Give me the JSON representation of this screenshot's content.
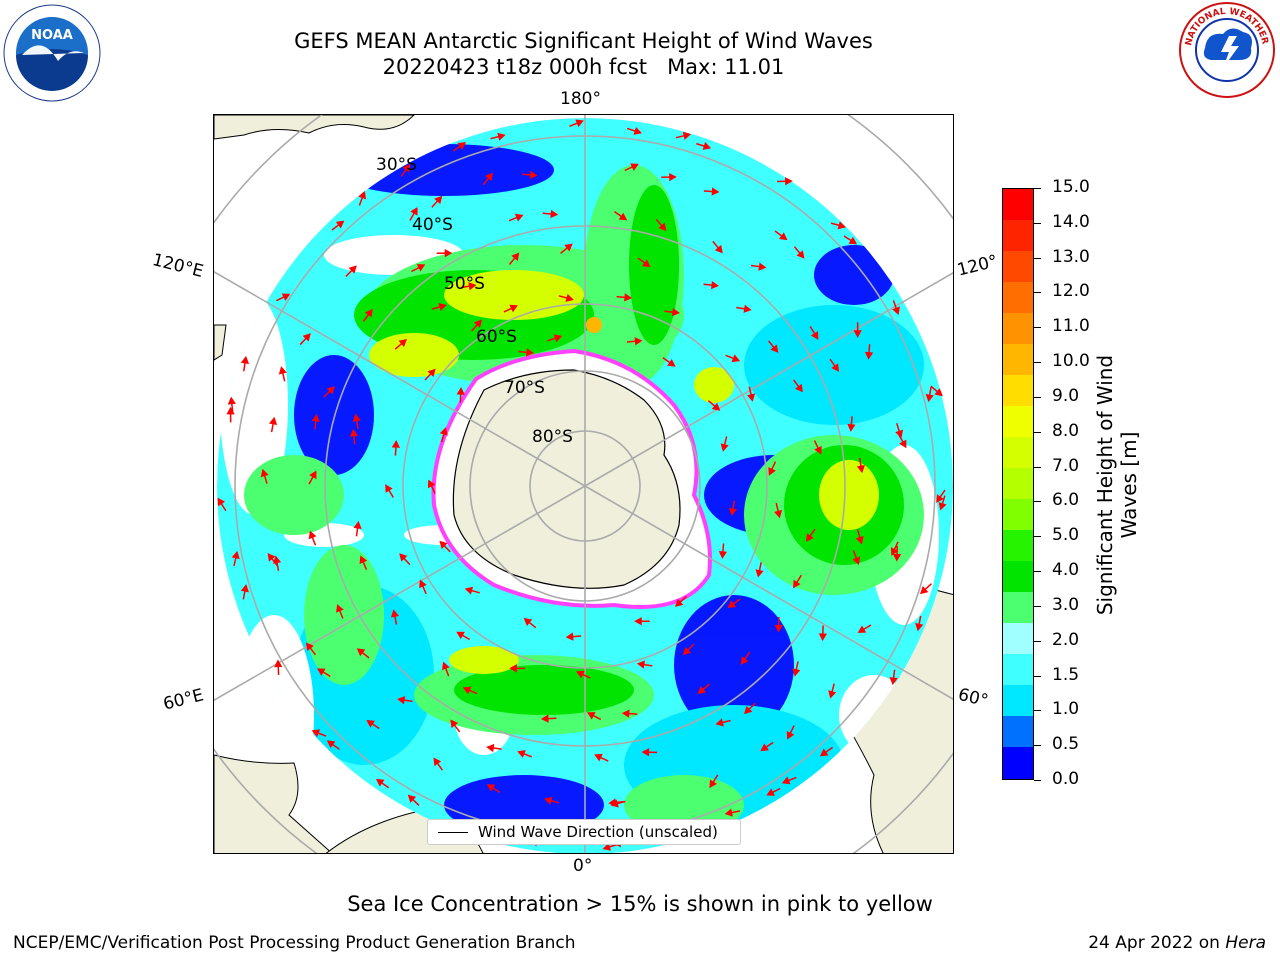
{
  "title_line1": "GEFS MEAN Antarctic Significant Height of Wind Waves",
  "title_line2": "20220423 t18z 000h fcst   Max: 11.01",
  "map": {
    "longitude_labels": {
      "top": "180°",
      "bottom": "0°",
      "left_upper": "120°E",
      "left_lower": "60°E",
      "right_upper": "120°",
      "right_lower": "60°"
    },
    "latitude_labels": [
      "30°S",
      "40°S",
      "50°S",
      "60°S",
      "70°S",
      "80°S"
    ]
  },
  "colorbar": {
    "label": "Significant Height of Wind Waves [m]",
    "ticks": [
      "15.0",
      "14.0",
      "13.0",
      "12.0",
      "11.0",
      "10.0",
      "9.0",
      "8.0",
      "7.0",
      "6.0",
      "5.0",
      "4.0",
      "3.0",
      "2.0",
      "1.5",
      "1.0",
      "0.5",
      "0.0"
    ],
    "colors": [
      "#ff0000",
      "#ff2400",
      "#ff4800",
      "#ff6e00",
      "#ff9200",
      "#ffb600",
      "#ffdd00",
      "#f0ff00",
      "#d4ff00",
      "#b4ff00",
      "#7fff00",
      "#26f300",
      "#00e400",
      "#4cff70",
      "#a0ffff",
      "#40ffff",
      "#00e8ff",
      "#0070ff",
      "#0000ff"
    ]
  },
  "legend": {
    "text": "Wind Wave Direction (unscaled)"
  },
  "subtitle": "Sea Ice Concentration > 15% is shown in pink to yellow",
  "footer": {
    "left": "NCEP/EMC/Verification Post Processing Product Generation Branch",
    "right_prefix": "24 Apr 2022 on ",
    "right_host": "Hera"
  },
  "logos": {
    "left": "NOAA",
    "right": "NATIONAL WEATHER SERVICE"
  },
  "colors": {
    "land": "#efefdc",
    "arrow": "#ff0000",
    "grid": "#aaaaaa",
    "ice_edge": "#ff40ff"
  }
}
